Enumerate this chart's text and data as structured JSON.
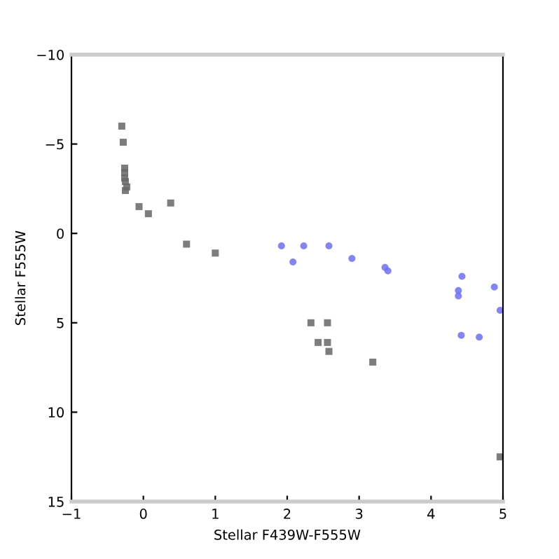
{
  "chart_data": {
    "type": "scatter",
    "xlabel": "Stellar F439W-F555W",
    "ylabel": "Stellar F555W",
    "xlim": [
      -1,
      5
    ],
    "ylim": [
      15,
      -10
    ],
    "xticks": [
      {
        "value": -1,
        "label": "−1"
      },
      0,
      1,
      2,
      3,
      4,
      5
    ],
    "yticks": [
      {
        "value": -10,
        "label": "−10"
      },
      {
        "value": -5,
        "label": "−5"
      },
      0,
      5,
      10,
      15
    ],
    "grid": false,
    "legend": false,
    "series": [
      {
        "color": "#666666",
        "marker": "square",
        "x": [
          -0.3,
          -0.28,
          -0.26,
          -0.26,
          -0.26,
          -0.25,
          -0.23,
          -0.25,
          -0.06,
          0.07,
          0.38,
          0.6,
          1.0,
          2.33,
          2.56,
          2.43,
          2.56,
          2.58,
          3.19,
          4.96
        ],
        "values": [
          -6.0,
          -5.1,
          -3.65,
          -3.4,
          -3.1,
          -2.9,
          -2.6,
          -2.4,
          -1.5,
          -1.1,
          -1.7,
          0.6,
          1.1,
          5.0,
          5.0,
          6.1,
          6.1,
          6.6,
          7.2,
          12.5
        ]
      },
      {
        "color": "#7070f0",
        "marker": "circle",
        "x": [
          1.92,
          2.08,
          2.23,
          2.58,
          2.9,
          3.36,
          3.4,
          4.43,
          4.38,
          4.38,
          4.88,
          4.96,
          4.42,
          4.67
        ],
        "values": [
          0.7,
          1.6,
          0.7,
          0.7,
          1.4,
          1.9,
          2.1,
          2.4,
          3.2,
          3.5,
          3.0,
          4.3,
          5.7,
          5.8
        ]
      }
    ]
  }
}
